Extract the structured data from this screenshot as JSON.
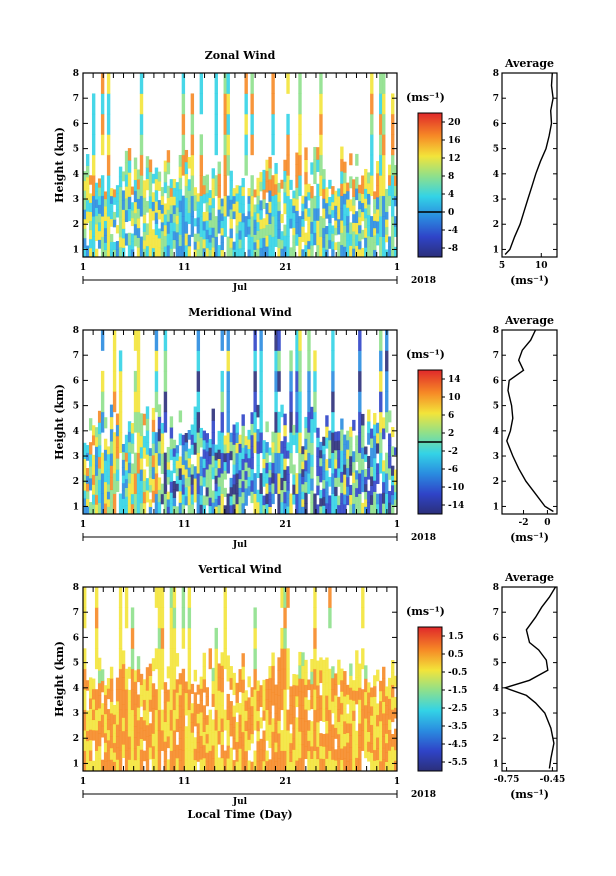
{
  "chart_data": [
    {
      "type": "heatmap",
      "title": "Zonal Wind",
      "ylabel": "Height (km)",
      "xlabel": "",
      "x_ticks": [
        "1",
        "11",
        "21",
        "1"
      ],
      "x_month_label": "Jul",
      "x_year_label": "2018",
      "y_ticks": [
        "1",
        "2",
        "3",
        "4",
        "5",
        "6",
        "7",
        "8"
      ],
      "ylim": [
        0.7,
        8
      ],
      "colorbar": {
        "unit": "(ms⁻¹)",
        "ticks": [
          "20",
          "16",
          "12",
          "8",
          "4",
          "0",
          "-4",
          "-8"
        ],
        "range": [
          -10,
          22
        ],
        "marker": 0
      },
      "average_panel": {
        "title": "Average",
        "xlabel": "(ms⁻¹)",
        "x_ticks": [
          "5",
          "10"
        ],
        "xlim": [
          5,
          12
        ],
        "profile": [
          [
            5.4,
            0.8
          ],
          [
            6.0,
            1.0
          ],
          [
            6.6,
            1.5
          ],
          [
            7.3,
            2.0
          ],
          [
            7.8,
            2.5
          ],
          [
            8.3,
            3.0
          ],
          [
            8.8,
            3.5
          ],
          [
            9.3,
            4.0
          ],
          [
            9.9,
            4.5
          ],
          [
            10.6,
            5.0
          ],
          [
            11.0,
            5.5
          ],
          [
            11.3,
            6.0
          ],
          [
            11.2,
            6.5
          ],
          [
            11.5,
            7.0
          ],
          [
            11.3,
            7.5
          ],
          [
            11.4,
            8.0
          ]
        ]
      }
    },
    {
      "type": "heatmap",
      "title": "Meridional Wind",
      "ylabel": "Height (km)",
      "xlabel": "",
      "x_ticks": [
        "1",
        "11",
        "21",
        "1"
      ],
      "x_month_label": "Jul",
      "x_year_label": "2018",
      "y_ticks": [
        "1",
        "2",
        "3",
        "4",
        "5",
        "6",
        "7",
        "8"
      ],
      "ylim": [
        0.7,
        8
      ],
      "colorbar": {
        "unit": "(ms⁻¹)",
        "ticks": [
          "14",
          "10",
          "6",
          "2",
          "-2",
          "-6",
          "-10",
          "-14"
        ],
        "range": [
          -16,
          16
        ],
        "marker": 0
      },
      "average_panel": {
        "title": "Average",
        "xlabel": "(ms⁻¹)",
        "x_ticks": [
          "-2",
          "0"
        ],
        "xlim": [
          -3.8,
          0.8
        ],
        "profile": [
          [
            0.5,
            0.8
          ],
          [
            -0.2,
            1.0
          ],
          [
            -1.0,
            1.5
          ],
          [
            -1.8,
            2.0
          ],
          [
            -2.4,
            2.5
          ],
          [
            -2.9,
            3.0
          ],
          [
            -3.4,
            3.6
          ],
          [
            -3.1,
            4.0
          ],
          [
            -2.9,
            4.5
          ],
          [
            -3.0,
            5.0
          ],
          [
            -3.3,
            5.6
          ],
          [
            -3.2,
            6.0
          ],
          [
            -2.0,
            6.4
          ],
          [
            -2.4,
            6.8
          ],
          [
            -2.1,
            7.2
          ],
          [
            -1.4,
            7.6
          ],
          [
            -1.0,
            8.0
          ]
        ]
      }
    },
    {
      "type": "heatmap",
      "title": "Vertical Wind",
      "ylabel": "Height (km)",
      "xlabel": "Local Time (Day)",
      "x_ticks": [
        "1",
        "11",
        "21",
        "1"
      ],
      "x_month_label": "Jul",
      "x_year_label": "2018",
      "y_ticks": [
        "1",
        "2",
        "3",
        "4",
        "5",
        "6",
        "7",
        "8"
      ],
      "ylim": [
        0.7,
        8
      ],
      "colorbar": {
        "unit": "(ms⁻¹)",
        "ticks": [
          "1.5",
          "0.5",
          "-0.5",
          "-1.5",
          "-2.5",
          "-3.5",
          "-4.5",
          "-5.5"
        ],
        "range": [
          -6,
          2
        ],
        "marker": null
      },
      "average_panel": {
        "title": "Average",
        "xlabel": "(ms⁻¹)",
        "x_ticks": [
          "-0.75",
          "-0.45"
        ],
        "xlim": [
          -0.78,
          -0.42
        ],
        "profile": [
          [
            -0.47,
            0.8
          ],
          [
            -0.46,
            1.2
          ],
          [
            -0.44,
            1.8
          ],
          [
            -0.46,
            2.4
          ],
          [
            -0.5,
            3.0
          ],
          [
            -0.56,
            3.4
          ],
          [
            -0.62,
            3.7
          ],
          [
            -0.76,
            4.0
          ],
          [
            -0.6,
            4.3
          ],
          [
            -0.48,
            4.7
          ],
          [
            -0.49,
            5.1
          ],
          [
            -0.54,
            5.5
          ],
          [
            -0.6,
            5.8
          ],
          [
            -0.62,
            6.3
          ],
          [
            -0.56,
            6.8
          ],
          [
            -0.52,
            7.2
          ],
          [
            -0.47,
            7.6
          ],
          [
            -0.43,
            8.0
          ]
        ]
      }
    }
  ]
}
